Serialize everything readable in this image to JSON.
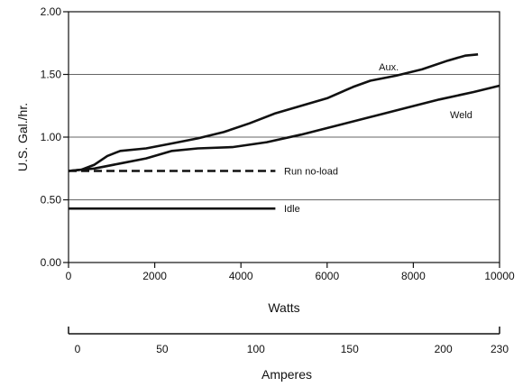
{
  "chart_data": {
    "type": "line",
    "ylabel": "U.S. Gal./hr.",
    "xlabel": "Watts",
    "x_range": [
      0,
      10000
    ],
    "y_range": [
      0,
      2
    ],
    "x_ticks": [
      {
        "value": 0,
        "label": "0"
      },
      {
        "value": 2000,
        "label": "2000"
      },
      {
        "value": 4000,
        "label": "4000"
      },
      {
        "value": 6000,
        "label": "6000"
      },
      {
        "value": 8000,
        "label": "8000"
      },
      {
        "value": 10000,
        "label": "10000"
      }
    ],
    "y_ticks": [
      {
        "value": 0,
        "label": "0.00"
      },
      {
        "value": 0.5,
        "label": "0.50"
      },
      {
        "value": 1.0,
        "label": "1.00"
      },
      {
        "value": 1.5,
        "label": "1.50"
      },
      {
        "value": 2.0,
        "label": "2.00"
      }
    ],
    "gridlines_y": [
      0.5,
      1.0,
      1.5
    ],
    "secondary_axis": {
      "label": "Amperes",
      "range": [
        0,
        230
      ],
      "ticks": [
        {
          "value": 0,
          "label": "0"
        },
        {
          "value": 50,
          "label": "50"
        },
        {
          "value": 100,
          "label": "100"
        },
        {
          "value": 150,
          "label": "150"
        },
        {
          "value": 200,
          "label": "200"
        },
        {
          "value": 230,
          "label": "230"
        }
      ]
    },
    "series": [
      {
        "name": "Aux.",
        "style": "solid",
        "label_at": [
          7200,
          1.56
        ],
        "points": [
          [
            0,
            0.73
          ],
          [
            300,
            0.74
          ],
          [
            600,
            0.78
          ],
          [
            900,
            0.85
          ],
          [
            1200,
            0.89
          ],
          [
            1800,
            0.91
          ],
          [
            2400,
            0.95
          ],
          [
            3000,
            0.99
          ],
          [
            3600,
            1.04
          ],
          [
            4200,
            1.11
          ],
          [
            4800,
            1.19
          ],
          [
            5400,
            1.25
          ],
          [
            6000,
            1.31
          ],
          [
            6600,
            1.4
          ],
          [
            7000,
            1.45
          ],
          [
            7600,
            1.49
          ],
          [
            8200,
            1.54
          ],
          [
            8800,
            1.61
          ],
          [
            9200,
            1.65
          ],
          [
            9500,
            1.66
          ]
        ]
      },
      {
        "name": "Weld",
        "style": "solid",
        "label_at": [
          8850,
          1.18
        ],
        "points": [
          [
            0,
            0.73
          ],
          [
            600,
            0.75
          ],
          [
            1200,
            0.79
          ],
          [
            1800,
            0.83
          ],
          [
            2400,
            0.89
          ],
          [
            3000,
            0.91
          ],
          [
            3800,
            0.92
          ],
          [
            4600,
            0.96
          ],
          [
            5400,
            1.02
          ],
          [
            6200,
            1.09
          ],
          [
            7000,
            1.16
          ],
          [
            7800,
            1.23
          ],
          [
            8600,
            1.3
          ],
          [
            9400,
            1.36
          ],
          [
            10000,
            1.41
          ]
        ]
      },
      {
        "name": "Run no-load",
        "style": "dashed",
        "label_at": [
          5000,
          0.73
        ],
        "points": [
          [
            0,
            0.73
          ],
          [
            4800,
            0.73
          ]
        ]
      },
      {
        "name": "Idle",
        "style": "solid",
        "label_at": [
          5000,
          0.43
        ],
        "points": [
          [
            0,
            0.43
          ],
          [
            4800,
            0.43
          ]
        ]
      }
    ]
  }
}
